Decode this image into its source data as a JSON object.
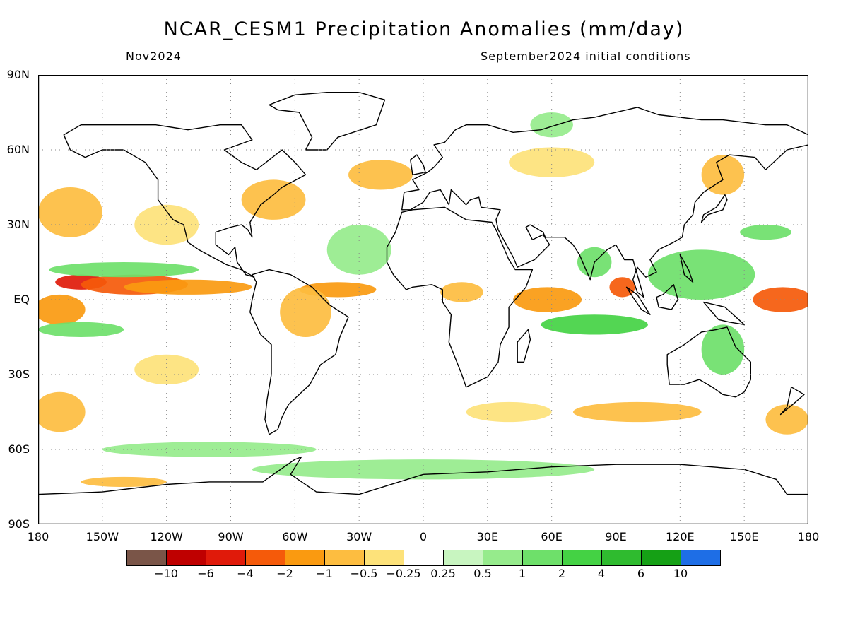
{
  "title": "NCAR_CESM1 Precipitation Anomalies (mm/day)",
  "subtitle_left": "Nov2024",
  "subtitle_right": "September2024 initial conditions",
  "lat_labels": [
    "90N",
    "60N",
    "30N",
    "EQ",
    "30S",
    "60S",
    "90S"
  ],
  "lon_labels": [
    "180",
    "150W",
    "120W",
    "90W",
    "60W",
    "30W",
    "0",
    "30E",
    "60E",
    "90E",
    "120E",
    "150E",
    "180"
  ],
  "colorbar": {
    "colors": [
      "#7a5548",
      "#bf0000",
      "#e01a0a",
      "#f55a0a",
      "#fa9a10",
      "#fdbd40",
      "#fde27a",
      "#ffffff",
      "#c8f5c0",
      "#96eb8c",
      "#6ee06a",
      "#44d244",
      "#2fbb2f",
      "#15a015",
      "#1e6ee6"
    ],
    "labels": [
      "−10",
      "−6",
      "−4",
      "−2",
      "−1",
      "−0.5",
      "−0.25",
      "0.25",
      "0.5",
      "1",
      "2",
      "4",
      "6",
      "10"
    ]
  },
  "map": {
    "lon_range": [
      -180,
      180
    ],
    "lat_range": [
      -90,
      90
    ],
    "grid": "dotted",
    "anomaly_fields": [
      {
        "lon": -160,
        "lat": 7,
        "rx": 12,
        "ry": 3,
        "value": -6
      },
      {
        "lon": -135,
        "lat": 6,
        "rx": 25,
        "ry": 4,
        "value": -4
      },
      {
        "lon": -110,
        "lat": 5,
        "rx": 30,
        "ry": 3,
        "value": -2
      },
      {
        "lon": -40,
        "lat": 4,
        "rx": 18,
        "ry": 3,
        "value": -2
      },
      {
        "lon": -170,
        "lat": -4,
        "rx": 12,
        "ry": 6,
        "value": -2
      },
      {
        "lon": 168,
        "lat": 0,
        "rx": 14,
        "ry": 5,
        "value": -4
      },
      {
        "lon": 58,
        "lat": 0,
        "rx": 16,
        "ry": 5,
        "value": -2
      },
      {
        "lon": 93,
        "lat": 5,
        "rx": 6,
        "ry": 4,
        "value": -4
      },
      {
        "lon": 18,
        "lat": 3,
        "rx": 10,
        "ry": 4,
        "value": -1
      },
      {
        "lon": -55,
        "lat": -5,
        "rx": 12,
        "ry": 10,
        "value": -1
      },
      {
        "lon": -140,
        "lat": 12,
        "rx": 35,
        "ry": 3,
        "value": 1
      },
      {
        "lon": -160,
        "lat": -12,
        "rx": 20,
        "ry": 3,
        "value": 1
      },
      {
        "lon": 80,
        "lat": -10,
        "rx": 25,
        "ry": 4,
        "value": 2
      },
      {
        "lon": 130,
        "lat": 10,
        "rx": 25,
        "ry": 10,
        "value": 1
      },
      {
        "lon": 140,
        "lat": -20,
        "rx": 10,
        "ry": 10,
        "value": 1
      },
      {
        "lon": 80,
        "lat": 15,
        "rx": 8,
        "ry": 6,
        "value": 1
      },
      {
        "lon": -30,
        "lat": 20,
        "rx": 15,
        "ry": 10,
        "value": 0.5
      },
      {
        "lon": 0,
        "lat": -68,
        "rx": 80,
        "ry": 4,
        "value": 0.5
      },
      {
        "lon": -100,
        "lat": -60,
        "rx": 50,
        "ry": 3,
        "value": 0.5
      },
      {
        "lon": -20,
        "lat": 50,
        "rx": 15,
        "ry": 6,
        "value": -1
      },
      {
        "lon": 60,
        "lat": 55,
        "rx": 20,
        "ry": 6,
        "value": -0.5
      },
      {
        "lon": -165,
        "lat": 35,
        "rx": 15,
        "ry": 10,
        "value": -1
      },
      {
        "lon": -70,
        "lat": 40,
        "rx": 15,
        "ry": 8,
        "value": -1
      },
      {
        "lon": 100,
        "lat": -45,
        "rx": 30,
        "ry": 4,
        "value": -1
      },
      {
        "lon": -170,
        "lat": -45,
        "rx": 12,
        "ry": 8,
        "value": -1
      },
      {
        "lon": 170,
        "lat": -48,
        "rx": 10,
        "ry": 6,
        "value": -1
      },
      {
        "lon": 140,
        "lat": 50,
        "rx": 10,
        "ry": 8,
        "value": -1
      },
      {
        "lon": -120,
        "lat": 30,
        "rx": 15,
        "ry": 8,
        "value": -0.5
      },
      {
        "lon": -120,
        "lat": -28,
        "rx": 15,
        "ry": 6,
        "value": -0.5
      },
      {
        "lon": 40,
        "lat": -45,
        "rx": 20,
        "ry": 4,
        "value": -0.5
      },
      {
        "lon": 160,
        "lat": 27,
        "rx": 12,
        "ry": 3,
        "value": 1
      },
      {
        "lon": 60,
        "lat": 70,
        "rx": 10,
        "ry": 5,
        "value": 0.5
      },
      {
        "lon": -140,
        "lat": -73,
        "rx": 20,
        "ry": 2,
        "value": -1
      }
    ],
    "land": [
      [
        [
          -168,
          66
        ],
        [
          -160,
          70
        ],
        [
          -140,
          70
        ],
        [
          -125,
          70
        ],
        [
          -110,
          68
        ],
        [
          -95,
          70
        ],
        [
          -85,
          70
        ],
        [
          -80,
          64
        ],
        [
          -93,
          60
        ],
        [
          -85,
          55
        ],
        [
          -78,
          52
        ],
        [
          -66,
          60
        ],
        [
          -60,
          55
        ],
        [
          -55,
          50
        ],
        [
          -66,
          45
        ],
        [
          -70,
          42
        ],
        [
          -76,
          38
        ],
        [
          -81,
          31
        ],
        [
          -80,
          25
        ],
        [
          -82,
          28
        ],
        [
          -85,
          30
        ],
        [
          -90,
          29
        ],
        [
          -97,
          27
        ],
        [
          -97,
          22
        ],
        [
          -91,
          18
        ],
        [
          -88,
          21
        ],
        [
          -87,
          15
        ],
        [
          -83,
          10
        ],
        [
          -79,
          9
        ],
        [
          -85,
          12
        ],
        [
          -92,
          14
        ],
        [
          -105,
          20
        ],
        [
          -110,
          23
        ],
        [
          -112,
          30
        ],
        [
          -117,
          32
        ],
        [
          -124,
          40
        ],
        [
          -124,
          48
        ],
        [
          -130,
          55
        ],
        [
          -140,
          60
        ],
        [
          -150,
          60
        ],
        [
          -158,
          57
        ],
        [
          -165,
          60
        ],
        [
          -168,
          66
        ]
      ],
      [
        [
          -80,
          10
        ],
        [
          -72,
          12
        ],
        [
          -62,
          10
        ],
        [
          -52,
          5
        ],
        [
          -44,
          -2
        ],
        [
          -35,
          -7
        ],
        [
          -39,
          -15
        ],
        [
          -41,
          -22
        ],
        [
          -48,
          -26
        ],
        [
          -53,
          -34
        ],
        [
          -58,
          -38
        ],
        [
          -63,
          -42
        ],
        [
          -66,
          -47
        ],
        [
          -68,
          -52
        ],
        [
          -72,
          -54
        ],
        [
          -74,
          -48
        ],
        [
          -73,
          -40
        ],
        [
          -71,
          -30
        ],
        [
          -71,
          -18
        ],
        [
          -76,
          -14
        ],
        [
          -81,
          -5
        ],
        [
          -80,
          0
        ],
        [
          -78,
          7
        ],
        [
          -80,
          10
        ]
      ],
      [
        [
          -10,
          35
        ],
        [
          -5,
          36
        ],
        [
          10,
          37
        ],
        [
          20,
          32
        ],
        [
          32,
          31
        ],
        [
          34,
          28
        ],
        [
          40,
          16
        ],
        [
          43,
          12
        ],
        [
          51,
          12
        ],
        [
          48,
          5
        ],
        [
          40,
          -3
        ],
        [
          40,
          -11
        ],
        [
          36,
          -18
        ],
        [
          35,
          -25
        ],
        [
          30,
          -31
        ],
        [
          20,
          -35
        ],
        [
          18,
          -30
        ],
        [
          12,
          -17
        ],
        [
          13,
          -6
        ],
        [
          9,
          -1
        ],
        [
          9,
          4
        ],
        [
          4,
          6
        ],
        [
          -5,
          5
        ],
        [
          -8,
          4
        ],
        [
          -14,
          10
        ],
        [
          -17,
          15
        ],
        [
          -17,
          21
        ],
        [
          -13,
          27
        ],
        [
          -10,
          35
        ]
      ],
      [
        [
          -10,
          36
        ],
        [
          -9,
          43
        ],
        [
          -2,
          44
        ],
        [
          -5,
          48
        ],
        [
          2,
          51
        ],
        [
          5,
          53
        ],
        [
          9,
          57
        ],
        [
          5,
          62
        ],
        [
          10,
          63
        ],
        [
          15,
          68
        ],
        [
          20,
          70
        ],
        [
          30,
          70
        ],
        [
          42,
          67
        ],
        [
          55,
          68
        ],
        [
          70,
          72
        ],
        [
          80,
          73
        ],
        [
          100,
          77
        ],
        [
          110,
          74
        ],
        [
          130,
          72
        ],
        [
          140,
          72
        ],
        [
          160,
          70
        ],
        [
          170,
          70
        ],
        [
          180,
          66
        ],
        [
          180,
          62
        ],
        [
          170,
          60
        ],
        [
          160,
          52
        ],
        [
          155,
          57
        ],
        [
          143,
          58
        ],
        [
          137,
          55
        ],
        [
          140,
          48
        ],
        [
          131,
          43
        ],
        [
          127,
          39
        ],
        [
          126,
          34
        ],
        [
          122,
          30
        ],
        [
          121,
          25
        ],
        [
          117,
          23
        ],
        [
          110,
          20
        ],
        [
          106,
          16
        ],
        [
          109,
          11
        ],
        [
          104,
          9
        ],
        [
          100,
          13
        ],
        [
          98,
          8
        ],
        [
          100,
          3
        ],
        [
          103,
          1
        ],
        [
          98,
          16
        ],
        [
          94,
          16
        ],
        [
          90,
          22
        ],
        [
          86,
          20
        ],
        [
          80,
          15
        ],
        [
          78,
          8
        ],
        [
          73,
          18
        ],
        [
          70,
          22
        ],
        [
          66,
          25
        ],
        [
          57,
          25
        ],
        [
          56,
          27
        ],
        [
          50,
          30
        ],
        [
          48,
          29
        ],
        [
          51,
          24
        ],
        [
          56,
          26
        ],
        [
          59,
          22
        ],
        [
          52,
          16
        ],
        [
          44,
          13
        ],
        [
          42,
          17
        ],
        [
          35,
          28
        ],
        [
          34,
          32
        ],
        [
          36,
          36
        ],
        [
          27,
          37
        ],
        [
          26,
          41
        ],
        [
          22,
          40
        ],
        [
          20,
          38
        ],
        [
          13,
          44
        ],
        [
          12,
          38
        ],
        [
          8,
          44
        ],
        [
          3,
          43
        ],
        [
          0,
          39
        ],
        [
          -6,
          36
        ],
        [
          -10,
          36
        ]
      ],
      [
        [
          -55,
          60
        ],
        [
          -45,
          60
        ],
        [
          -40,
          65
        ],
        [
          -22,
          70
        ],
        [
          -20,
          75
        ],
        [
          -18,
          80
        ],
        [
          -30,
          83
        ],
        [
          -45,
          83
        ],
        [
          -60,
          82
        ],
        [
          -72,
          78
        ],
        [
          -68,
          76
        ],
        [
          -58,
          75
        ],
        [
          -55,
          70
        ],
        [
          -52,
          65
        ],
        [
          -55,
          60
        ]
      ],
      [
        [
          114,
          -22
        ],
        [
          122,
          -18
        ],
        [
          130,
          -13
        ],
        [
          137,
          -12
        ],
        [
          142,
          -11
        ],
        [
          146,
          -19
        ],
        [
          153,
          -25
        ],
        [
          153,
          -32
        ],
        [
          150,
          -37
        ],
        [
          146,
          -39
        ],
        [
          140,
          -38
        ],
        [
          135,
          -35
        ],
        [
          129,
          -32
        ],
        [
          122,
          -34
        ],
        [
          115,
          -34
        ],
        [
          114,
          -26
        ],
        [
          114,
          -22
        ]
      ],
      [
        [
          -180,
          -78
        ],
        [
          -150,
          -77
        ],
        [
          -120,
          -74
        ],
        [
          -100,
          -73
        ],
        [
          -75,
          -73
        ],
        [
          -60,
          -64
        ],
        [
          -57,
          -63
        ],
        [
          -62,
          -70
        ],
        [
          -50,
          -77
        ],
        [
          -30,
          -78
        ],
        [
          0,
          -70
        ],
        [
          30,
          -69
        ],
        [
          60,
          -67
        ],
        [
          90,
          -66
        ],
        [
          120,
          -66
        ],
        [
          150,
          -68
        ],
        [
          165,
          -72
        ],
        [
          170,
          -78
        ],
        [
          180,
          -78
        ],
        [
          180,
          -90
        ],
        [
          -180,
          -90
        ],
        [
          -180,
          -78
        ]
      ],
      [
        [
          95,
          5
        ],
        [
          100,
          2
        ],
        [
          106,
          -6
        ],
        [
          102,
          -4
        ],
        [
          98,
          1
        ],
        [
          95,
          5
        ]
      ],
      [
        [
          109,
          1
        ],
        [
          110,
          -3
        ],
        [
          116,
          -4
        ],
        [
          119,
          0
        ],
        [
          117,
          6
        ],
        [
          112,
          2
        ],
        [
          109,
          1
        ]
      ],
      [
        [
          131,
          -1
        ],
        [
          141,
          -3
        ],
        [
          150,
          -10
        ],
        [
          143,
          -9
        ],
        [
          138,
          -8
        ],
        [
          131,
          -1
        ]
      ],
      [
        [
          130,
          31
        ],
        [
          133,
          34
        ],
        [
          140,
          36
        ],
        [
          142,
          40
        ],
        [
          141,
          42
        ],
        [
          137,
          37
        ],
        [
          131,
          34
        ],
        [
          130,
          31
        ]
      ],
      [
        [
          44,
          -25
        ],
        [
          47,
          -25
        ],
        [
          50,
          -16
        ],
        [
          49,
          -12
        ],
        [
          44,
          -17
        ],
        [
          44,
          -25
        ]
      ],
      [
        [
          -5,
          50
        ],
        [
          1,
          51
        ],
        [
          0,
          54
        ],
        [
          -3,
          58
        ],
        [
          -6,
          56
        ],
        [
          -5,
          50
        ]
      ],
      [
        [
          172,
          -35
        ],
        [
          178,
          -38
        ],
        [
          174,
          -41
        ],
        [
          167,
          -46
        ],
        [
          170,
          -43
        ],
        [
          172,
          -35
        ]
      ],
      [
        [
          120,
          18
        ],
        [
          124,
          12
        ],
        [
          126,
          7
        ],
        [
          122,
          10
        ],
        [
          120,
          18
        ]
      ]
    ]
  }
}
